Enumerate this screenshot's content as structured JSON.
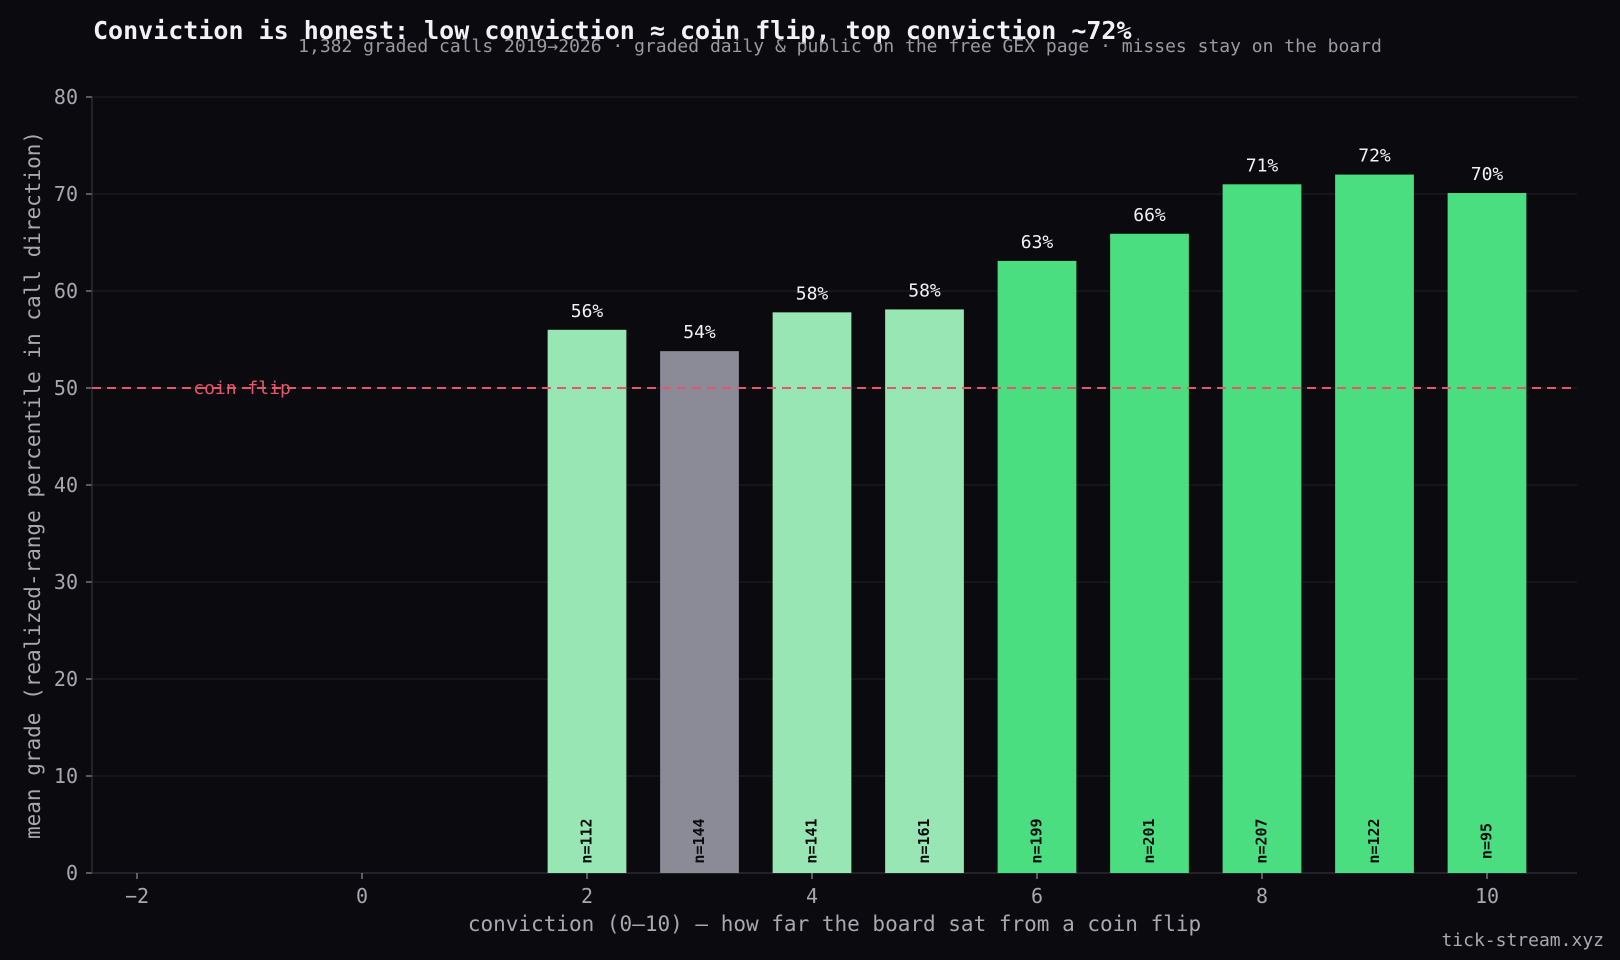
{
  "chart_data": {
    "type": "bar",
    "title": "Conviction is honest: low conviction ≈ coin flip, top conviction ~72%",
    "subtitle": "1,382 graded calls 2019→2026 · graded daily & public on the free GEX page · misses stay on the board",
    "xlabel": "conviction (0–10) — how far the board sat from a coin flip",
    "ylabel": "mean grade (realized-range percentile in call direction)",
    "xlim": [
      -2.4,
      10.8
    ],
    "ylim": [
      0,
      80
    ],
    "x_ticks": [
      -2,
      0,
      2,
      4,
      6,
      8,
      10
    ],
    "x_tick_labels": [
      "−2",
      "0",
      "2",
      "4",
      "6",
      "8",
      "10"
    ],
    "y_ticks": [
      0,
      10,
      20,
      30,
      40,
      50,
      60,
      70,
      80
    ],
    "grid": true,
    "reference_line": {
      "y": 50,
      "label": "coin flip",
      "color": "#e5566a",
      "style": "dashed"
    },
    "bars": [
      {
        "x": 2,
        "value": 56.0,
        "label": "56%",
        "n_label": "n=112",
        "color": "#98e6b3"
      },
      {
        "x": 3,
        "value": 53.8,
        "label": "54%",
        "n_label": "n=144",
        "color": "#8b8b97"
      },
      {
        "x": 4,
        "value": 57.8,
        "label": "58%",
        "n_label": "n=141",
        "color": "#98e6b3"
      },
      {
        "x": 5,
        "value": 58.1,
        "label": "58%",
        "n_label": "n=161",
        "color": "#98e6b3"
      },
      {
        "x": 6,
        "value": 63.1,
        "label": "63%",
        "n_label": "n=199",
        "color": "#4ade80"
      },
      {
        "x": 7,
        "value": 65.9,
        "label": "66%",
        "n_label": "n=201",
        "color": "#4ade80"
      },
      {
        "x": 8,
        "value": 71.0,
        "label": "71%",
        "n_label": "n=207",
        "color": "#4ade80"
      },
      {
        "x": 9,
        "value": 72.0,
        "label": "72%",
        "n_label": "n=122",
        "color": "#4ade80"
      },
      {
        "x": 10,
        "value": 70.1,
        "label": "70%",
        "n_label": "n=95",
        "color": "#4ade80"
      }
    ]
  },
  "watermark": "tick-stream.xyz",
  "colors": {
    "background": "#0b0b0f",
    "grid": "#1f1f26",
    "axis": "#3a3a44",
    "tick_text": "#a8a8b0",
    "value_label": "#f2f2f5",
    "n_label": "#0b0b0f"
  }
}
